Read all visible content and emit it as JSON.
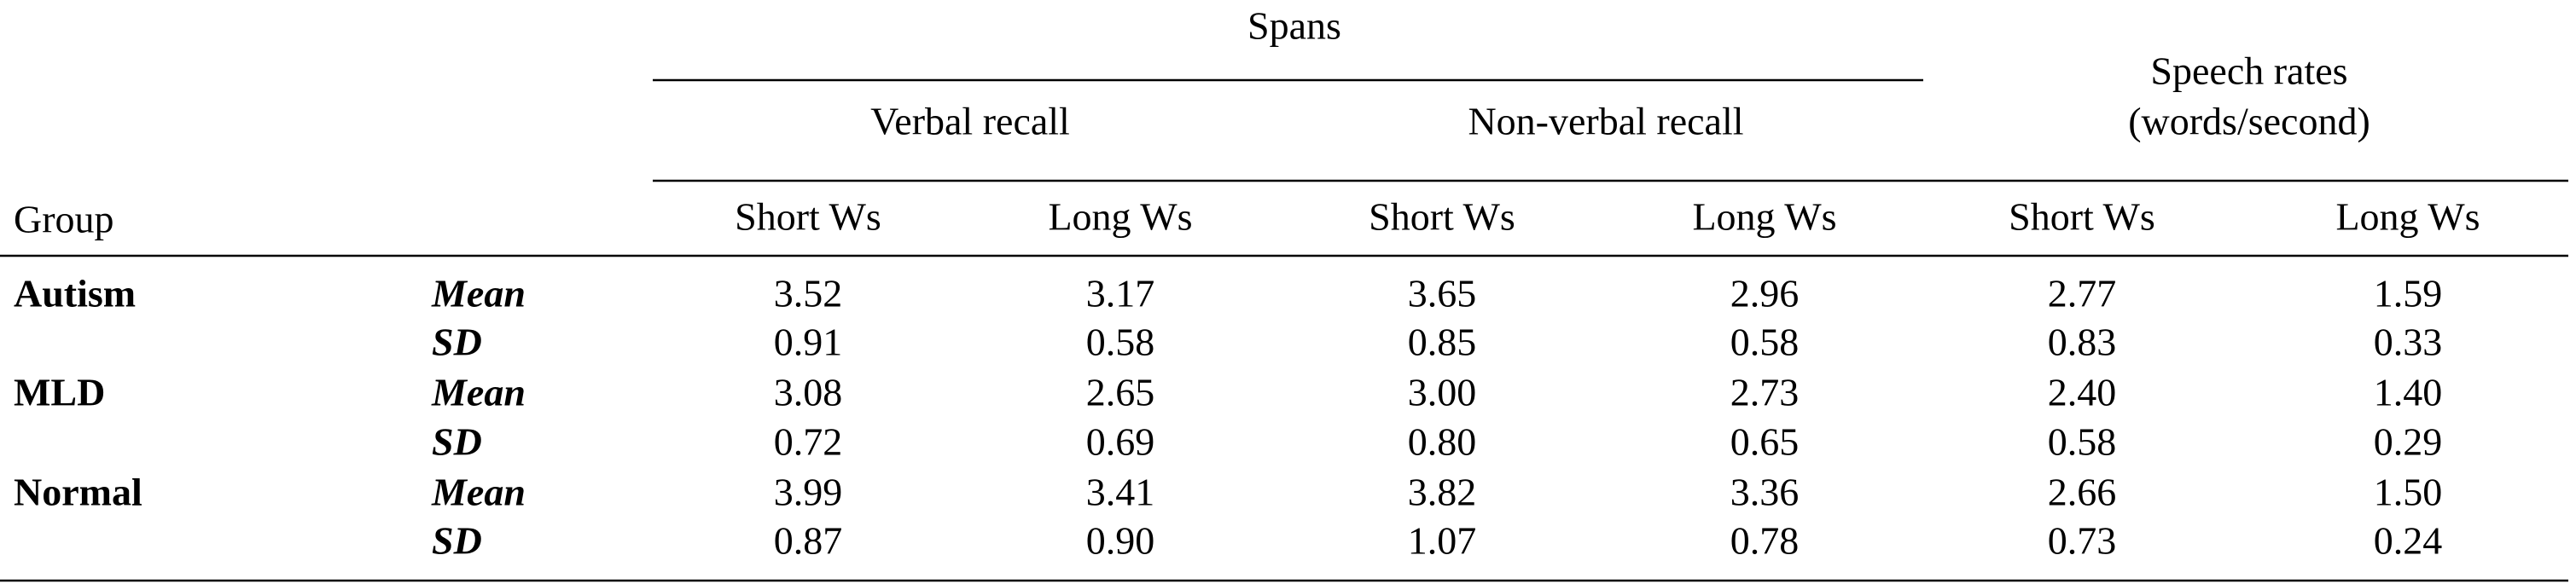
{
  "header": {
    "spans": "Spans",
    "speech_rates": [
      "Speech rates",
      "(words/second)"
    ],
    "subgroups": [
      "Verbal recall",
      "Non-verbal recall"
    ],
    "group": "Group",
    "columns": [
      "Short Ws",
      "Long Ws",
      "Short Ws",
      "Long Ws",
      "Short Ws",
      "Long Ws"
    ]
  },
  "table": {
    "rows": [
      {
        "group": "Autism",
        "stat": "Mean",
        "values": [
          "3.52",
          "3.17",
          "3.65",
          "2.96",
          "2.77",
          "1.59"
        ]
      },
      {
        "group": null,
        "stat": "SD",
        "values": [
          "0.91",
          "0.58",
          "0.85",
          "0.58",
          "0.83",
          "0.33"
        ]
      },
      {
        "group": "MLD",
        "stat": "Mean",
        "values": [
          "3.08",
          "2.65",
          "3.00",
          "2.73",
          "2.40",
          "1.40"
        ]
      },
      {
        "group": null,
        "stat": "SD",
        "values": [
          "0.72",
          "0.69",
          "0.80",
          "0.65",
          "0.58",
          "0.29"
        ]
      },
      {
        "group": "Normal",
        "stat": "Mean",
        "values": [
          "3.99",
          "3.41",
          "3.82",
          "3.36",
          "2.66",
          "1.50"
        ]
      },
      {
        "group": null,
        "stat": "SD",
        "values": [
          "0.87",
          "0.90",
          "1.07",
          "0.78",
          "0.73",
          "0.24"
        ]
      }
    ]
  }
}
